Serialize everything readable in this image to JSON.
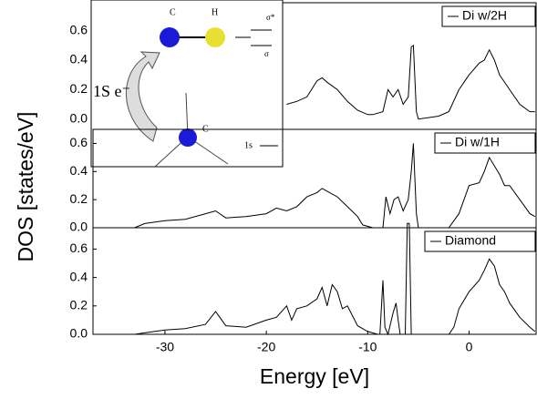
{
  "chart_data": [
    {
      "type": "line",
      "xlim": [
        -37.1,
        6.7
      ],
      "ylim": [
        -0.07,
        0.79
      ],
      "yticks": [
        {
          "value": 0,
          "label": "0.0"
        },
        0.2,
        0.4,
        0.6
      ],
      "legend": "upper right",
      "inset_labels": [
        "C",
        "H",
        "σ*",
        "σ",
        "1S e⁻",
        "C",
        "1s"
      ],
      "x": [
        -18,
        -17,
        -16,
        -15,
        -14.5,
        -14,
        -13,
        -12,
        -11,
        -10,
        -9.5,
        -8.5,
        -8,
        -7.5,
        -7,
        -6.5,
        -6,
        -5.7,
        -5.5,
        -5.2,
        -5,
        -3,
        -2,
        -1,
        0,
        1,
        1.5,
        2,
        2.5,
        3,
        4,
        5,
        6,
        6.5
      ],
      "series": [
        {
          "name": "Di w/2H",
          "color": "#000000",
          "values": [
            0.1,
            0.12,
            0.15,
            0.26,
            0.28,
            0.25,
            0.2,
            0.12,
            0.06,
            0.03,
            0.03,
            0.05,
            0.2,
            0.15,
            0.2,
            0.1,
            0.15,
            0.49,
            0.5,
            0.05,
            0,
            0.02,
            0.05,
            0.2,
            0.3,
            0.38,
            0.4,
            0.47,
            0.4,
            0.3,
            0.2,
            0.1,
            0.05,
            0.05
          ]
        }
      ]
    },
    {
      "type": "line",
      "xlim": [
        -37.1,
        6.7
      ],
      "ylim": [
        0,
        0.7
      ],
      "yticks": [
        {
          "value": 0,
          "label": "0.0"
        },
        0.2,
        0.4,
        0.6
      ],
      "legend": "upper right",
      "ylabel": "DOS [states/eV]",
      "x": [
        -33,
        -32,
        -30,
        -28,
        -26,
        -25,
        -24,
        -22,
        -20,
        -19,
        -18,
        -17,
        -16,
        -15,
        -14.5,
        -14,
        -13,
        -12,
        -11,
        -10.5,
        -9.5,
        -8.5,
        -8.2,
        -7.8,
        -7.4,
        -7,
        -6.5,
        -6,
        -5.7,
        -5.5,
        -5.2,
        -5,
        -2,
        -1,
        0,
        1,
        1.5,
        2,
        2.5,
        3,
        3.5,
        4,
        5,
        6,
        6.5
      ],
      "series": [
        {
          "name": "Di w/1H",
          "color": "#000000",
          "values": [
            0,
            0.03,
            0.05,
            0.06,
            0.1,
            0.12,
            0.07,
            0.08,
            0.1,
            0.14,
            0.12,
            0.15,
            0.22,
            0.25,
            0.28,
            0.26,
            0.22,
            0.15,
            0.08,
            0.02,
            0,
            0,
            0.22,
            0.1,
            0.2,
            0.22,
            0.12,
            0.2,
            0.4,
            0.6,
            0.1,
            0,
            0,
            0.1,
            0.3,
            0.32,
            0.4,
            0.5,
            0.44,
            0.38,
            0.3,
            0.3,
            0.2,
            0.1,
            0.08
          ]
        }
      ]
    },
    {
      "type": "line",
      "xlim": [
        -37.1,
        6.7
      ],
      "ylim": [
        0,
        0.75
      ],
      "yticks": [
        {
          "value": 0,
          "label": "0.0"
        },
        0.2,
        0.4,
        0.6
      ],
      "xticks": [
        -30,
        -20,
        -10,
        0
      ],
      "xlabel": "Energy [eV]",
      "legend": "upper right",
      "x": [
        -33,
        -32,
        -30,
        -28,
        -26,
        -25,
        -24,
        -22,
        -20,
        -19,
        -18,
        -17.5,
        -17,
        -16,
        -15,
        -14.5,
        -14,
        -13.5,
        -13,
        -12.5,
        -12,
        -11,
        -10,
        -9,
        -8.8,
        -8.5,
        -8.3,
        -8,
        -7.5,
        -7.2,
        -7,
        -6.8,
        -6.3,
        -6.1,
        -5.9,
        -5.7,
        -5.5,
        -5,
        -2,
        -1.5,
        -1,
        0,
        1,
        1.5,
        2,
        2.5,
        3,
        3.5,
        4,
        5,
        6,
        6.5
      ],
      "series": [
        {
          "name": "Diamond",
          "color": "#000000",
          "values": [
            0,
            0.01,
            0.03,
            0.04,
            0.07,
            0.16,
            0.06,
            0.05,
            0.1,
            0.12,
            0.2,
            0.1,
            0.18,
            0.2,
            0.25,
            0.33,
            0.2,
            0.35,
            0.3,
            0.18,
            0.2,
            0.06,
            0.02,
            0,
            0,
            0.38,
            0.05,
            0,
            0.15,
            0.22,
            0.1,
            0,
            0,
            0.78,
            0.78,
            0,
            0,
            0,
            0,
            0.05,
            0.18,
            0.3,
            0.38,
            0.45,
            0.53,
            0.48,
            0.35,
            0.3,
            0.22,
            0.12,
            0.05,
            0.02
          ]
        }
      ]
    }
  ]
}
